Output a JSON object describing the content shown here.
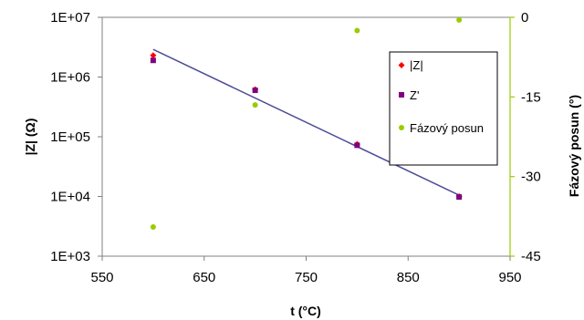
{
  "chart_data": {
    "type": "scatter",
    "xlabel": "t  (°C)",
    "ylabel_left": "|Z| (Ω)",
    "ylabel_right": "Fázový posun (°)",
    "xlim": [
      550,
      950
    ],
    "x_ticks": [
      550,
      650,
      750,
      850,
      950
    ],
    "x_tick_labels": [
      "550",
      "650",
      "750",
      "850",
      "950"
    ],
    "ylim_left": [
      1000,
      10000000
    ],
    "y_scale_left": "log",
    "y_ticks_left": [
      1000,
      10000,
      100000,
      1000000,
      10000000
    ],
    "y_tick_labels_left": [
      "1E+03",
      "1E+04",
      "1E+05",
      "1E+06",
      "1E+07"
    ],
    "ylim_right": [
      -45,
      0
    ],
    "y_ticks_right": [
      -45,
      -30,
      -15,
      0
    ],
    "y_tick_labels_right": [
      "-45",
      "-30",
      "-15",
      "0"
    ],
    "grid": false,
    "legend_position": "right",
    "series": [
      {
        "name": "|Z|",
        "axis": "left",
        "marker": "diamond",
        "color": "#ff0000",
        "x": [
          600,
          700,
          800,
          900
        ],
        "y": [
          2300000,
          620000,
          75000,
          10000
        ]
      },
      {
        "name": "Z'",
        "axis": "left",
        "marker": "square",
        "color": "#800080",
        "x": [
          600,
          700,
          800,
          900
        ],
        "y": [
          1900000,
          600000,
          72000,
          9800
        ]
      },
      {
        "name": "Fázový posun",
        "axis": "right",
        "marker": "circle",
        "color": "#99cc00",
        "x": [
          600,
          700,
          800,
          900
        ],
        "y": [
          -39.5,
          -16.5,
          -2.5,
          -0.5
        ]
      }
    ],
    "trendline": {
      "axis": "left",
      "color": "#4d4d99",
      "x": [
        600,
        900
      ],
      "y": [
        2900000,
        10500
      ]
    }
  }
}
